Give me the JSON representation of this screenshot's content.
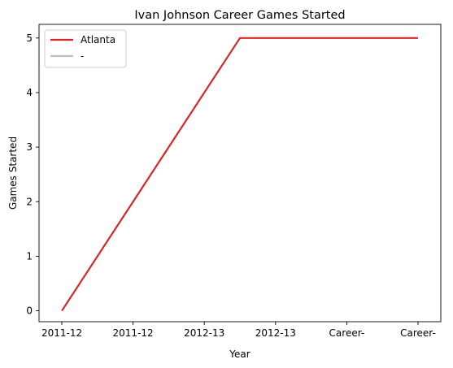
{
  "chart_data": {
    "type": "line",
    "title": "Ivan Johnson  Career Games Started",
    "xlabel": "Year",
    "ylabel": "Games Started",
    "categories": [
      "2011-12",
      "2011-12",
      "2012-13",
      "2012-13",
      "Career-",
      "Career-"
    ],
    "ylim": [
      -0.2,
      5.25
    ],
    "yticks": [
      0,
      1,
      2,
      3,
      4,
      5
    ],
    "grid": false,
    "legend_placement": "top-left",
    "series": [
      {
        "name": "Atlanta",
        "color": "#d62728",
        "points": [
          [
            0,
            0
          ],
          [
            2.5,
            5
          ],
          [
            5,
            5
          ]
        ]
      },
      {
        "name": "-",
        "color": "#bfbfbf",
        "points": []
      }
    ]
  }
}
